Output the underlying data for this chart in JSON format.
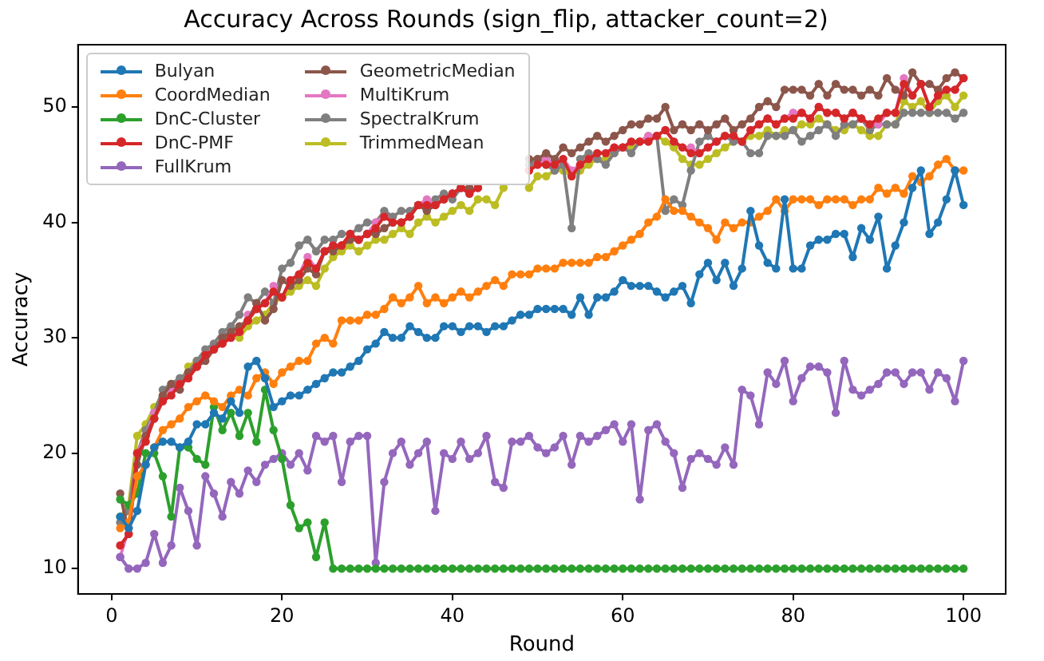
{
  "chart_data": {
    "type": "line",
    "title": "Accuracy Across Rounds (sign_flip, attacker_count=2)",
    "xlabel": "Round",
    "ylabel": "Accuracy",
    "x": [
      1,
      2,
      3,
      4,
      5,
      6,
      7,
      8,
      9,
      10,
      11,
      12,
      13,
      14,
      15,
      16,
      17,
      18,
      19,
      20,
      21,
      22,
      23,
      24,
      25,
      26,
      27,
      28,
      29,
      30,
      31,
      32,
      33,
      34,
      35,
      36,
      37,
      38,
      39,
      40,
      41,
      42,
      43,
      44,
      45,
      46,
      47,
      48,
      49,
      50,
      51,
      52,
      53,
      54,
      55,
      56,
      57,
      58,
      59,
      60,
      61,
      62,
      63,
      64,
      65,
      66,
      67,
      68,
      69,
      70,
      71,
      72,
      73,
      74,
      75,
      76,
      77,
      78,
      79,
      80,
      81,
      82,
      83,
      84,
      85,
      86,
      87,
      88,
      89,
      90,
      91,
      92,
      93,
      94,
      95,
      96,
      97,
      98,
      99,
      100
    ],
    "xlim": [
      -3.95,
      104.95
    ],
    "xticks": [
      0,
      20,
      40,
      60,
      80,
      100
    ],
    "ylim": [
      7.8,
      55.4
    ],
    "yticks": [
      10,
      20,
      30,
      40,
      50
    ],
    "grid": false,
    "legend": "top left",
    "marker": "circle",
    "line_style": "solid",
    "series": [
      {
        "name": "Bulyan",
        "color": "#1f77b4",
        "values": [
          14.5,
          13.5,
          15,
          19,
          20.5,
          21,
          21,
          20.5,
          21,
          22.5,
          22.5,
          23.5,
          23,
          24.5,
          23.5,
          27.5,
          28,
          26.5,
          24,
          24.5,
          25,
          25,
          25.5,
          26,
          26.5,
          27,
          27,
          27.5,
          28,
          29,
          29.5,
          30.5,
          30,
          30,
          31,
          30.5,
          30,
          30,
          31,
          31,
          30.5,
          31,
          31,
          30.5,
          31,
          31,
          31.5,
          32,
          32,
          32.5,
          32.5,
          32.5,
          32.5,
          32,
          33.5,
          32,
          33.5,
          33.5,
          34,
          35,
          34.5,
          34.5,
          34.5,
          34,
          33.5,
          34,
          34.5,
          33,
          35.5,
          36.5,
          35,
          36.5,
          34.5,
          36,
          41,
          38,
          36.5,
          36,
          42,
          36,
          36,
          38,
          38.5,
          38.5,
          39,
          39,
          37,
          39.5,
          38.5,
          40.5,
          36,
          38,
          40,
          43,
          44.5,
          39,
          40,
          42,
          44.5,
          41.5
        ]
      },
      {
        "name": "CoordMedian",
        "color": "#ff7f0e",
        "values": [
          13.5,
          14,
          18,
          19,
          20.5,
          22,
          22.5,
          23,
          24,
          24.5,
          25,
          24.5,
          24,
          25,
          25.5,
          25,
          26.5,
          27,
          26,
          27,
          27.5,
          28,
          28,
          29.5,
          30,
          29.5,
          31.5,
          31.5,
          31.5,
          32,
          32,
          32.5,
          33.5,
          33,
          33.5,
          34.5,
          33,
          33.5,
          33,
          33.5,
          34,
          33.5,
          34,
          34.5,
          35,
          34.5,
          35.5,
          35.5,
          35.5,
          36,
          36,
          36,
          36.5,
          36.5,
          36.5,
          36.5,
          37,
          37,
          37.5,
          38,
          38.5,
          39,
          40,
          40.5,
          42,
          41,
          41,
          40.5,
          40,
          39.5,
          38.5,
          40,
          39.5,
          40,
          40,
          40.5,
          41,
          42,
          41,
          42,
          42,
          42,
          41.5,
          42,
          42,
          42,
          41.5,
          42,
          42,
          43,
          42.5,
          43,
          42.5,
          44,
          43.5,
          44,
          45,
          45.5,
          44.5,
          44.5
        ]
      },
      {
        "name": "DnC-Cluster",
        "color": "#2ca02c",
        "values": [
          16,
          15.5,
          16.5,
          20,
          20,
          18,
          14.5,
          20.5,
          20.5,
          19.5,
          19,
          24,
          22,
          23.5,
          21.5,
          23.5,
          21,
          25.5,
          22,
          19.5,
          15.5,
          13.5,
          14,
          11,
          14,
          10,
          10,
          10,
          10,
          10,
          10,
          10,
          10,
          10,
          10,
          10,
          10,
          10,
          10,
          10,
          10,
          10,
          10,
          10,
          10,
          10,
          10,
          10,
          10,
          10,
          10,
          10,
          10,
          10,
          10,
          10,
          10,
          10,
          10,
          10,
          10,
          10,
          10,
          10,
          10,
          10,
          10,
          10,
          10,
          10,
          10,
          10,
          10,
          10,
          10,
          10,
          10,
          10,
          10,
          10,
          10,
          10,
          10,
          10,
          10,
          10,
          10,
          10,
          10,
          10,
          10,
          10,
          10,
          10,
          10,
          10,
          10,
          10,
          10,
          10
        ]
      },
      {
        "name": "DnC-PMF",
        "color": "#d62728",
        "values": [
          12,
          13,
          20,
          21,
          23,
          24.5,
          25,
          26,
          26.5,
          27.5,
          28.5,
          29,
          29.5,
          30,
          30.5,
          31.5,
          32.5,
          33,
          34,
          33.5,
          35,
          35.5,
          36.5,
          36,
          37.5,
          38,
          38,
          39,
          38.5,
          39,
          39.5,
          40.5,
          40,
          40,
          40.5,
          41.5,
          41.5,
          41.5,
          42,
          42.5,
          43,
          42.5,
          43,
          null,
          null,
          null,
          null,
          null,
          44.5,
          45,
          45,
          45,
          45.5,
          44,
          45,
          45.5,
          46,
          46,
          46.5,
          46.5,
          47,
          47,
          47,
          47.5,
          48,
          47,
          46.5,
          46,
          46,
          46.5,
          47,
          47.5,
          47.5,
          47,
          48,
          48.5,
          49,
          48.5,
          49,
          49,
          49.5,
          49,
          50,
          49.5,
          49.5,
          49,
          49.5,
          49,
          48.5,
          49,
          49.5,
          49.5,
          52,
          51,
          52,
          50,
          51,
          51.5,
          51.5,
          52.5
        ]
      },
      {
        "name": "FullKrum",
        "color": "#9467bd",
        "values": [
          11,
          10,
          10,
          10.5,
          13,
          10.5,
          12,
          17,
          15,
          12,
          18,
          16.5,
          14.5,
          17.5,
          16.5,
          18.5,
          17.5,
          19,
          19.5,
          20,
          19,
          20,
          18.5,
          21.5,
          21,
          21.5,
          17.5,
          21,
          21.5,
          21.5,
          10.5,
          17.5,
          20,
          21,
          19,
          20,
          21,
          15,
          20,
          19.5,
          21,
          19.5,
          20,
          21.5,
          17.5,
          17,
          21,
          21,
          21.5,
          20.5,
          20,
          20.5,
          21.5,
          19,
          21.5,
          21,
          21.5,
          22,
          22.5,
          21,
          22.5,
          16,
          22,
          22.5,
          21,
          20,
          17,
          19.5,
          20,
          19.5,
          19,
          20.5,
          19,
          25.5,
          25,
          22.5,
          27,
          26,
          28,
          24.5,
          26.5,
          27.5,
          27.5,
          27,
          23.5,
          28,
          25.5,
          25,
          25.5,
          26,
          27,
          27,
          26,
          27,
          27,
          25.5,
          27,
          26.5,
          24.5,
          28
        ]
      },
      {
        "name": "GeometricMedian",
        "color": "#8c564b",
        "values": [
          16.5,
          13,
          19,
          21.5,
          23,
          25,
          26,
          25.5,
          27,
          27.5,
          28,
          29,
          30,
          30.5,
          31,
          31.5,
          33,
          31.5,
          32.5,
          35,
          34.5,
          35,
          36,
          35.5,
          37.5,
          37.5,
          38,
          38.5,
          38.5,
          39,
          39,
          39.5,
          40,
          40,
          40.5,
          41.5,
          41,
          41.5,
          42,
          42.5,
          43,
          43,
          null,
          null,
          null,
          null,
          null,
          null,
          45.5,
          45.5,
          46,
          45.5,
          46.5,
          46,
          46.5,
          47,
          47.5,
          47,
          47.5,
          48,
          48.5,
          48.5,
          49,
          49,
          50,
          48,
          48.5,
          48,
          48.5,
          48,
          48.5,
          49,
          48,
          48.5,
          49,
          50,
          50.5,
          50,
          51.5,
          51.5,
          51.5,
          51,
          52,
          51,
          52,
          51.5,
          51.5,
          51,
          51.5,
          51,
          52.5,
          51.5,
          51,
          53,
          52,
          52,
          51.5,
          52.5,
          53,
          52.5
        ]
      },
      {
        "name": "MultiKrum",
        "color": "#e377c2",
        "values": [
          11,
          13.5,
          20,
          21.5,
          23.5,
          24.5,
          25.5,
          26,
          26.5,
          27.5,
          28.5,
          29,
          29.5,
          30,
          30.5,
          32,
          32.5,
          33,
          34.5,
          33.5,
          35,
          35.5,
          37,
          36,
          37.5,
          38,
          38,
          39,
          38.5,
          39,
          40,
          40.5,
          40,
          40,
          40.5,
          41.5,
          42,
          41.5,
          42,
          42.5,
          43,
          42.5,
          43,
          null,
          null,
          null,
          null,
          null,
          44.5,
          45,
          45.5,
          45,
          45.5,
          44.5,
          45,
          45.5,
          46,
          46,
          46.5,
          46.5,
          47,
          47,
          47.5,
          47.5,
          48,
          47,
          46.5,
          46.5,
          46,
          46.5,
          47,
          47.5,
          47.5,
          47,
          48,
          48.5,
          49,
          48.5,
          49,
          49.5,
          49.5,
          49,
          50,
          49.5,
          49.5,
          49,
          49.5,
          49,
          48.5,
          48.5,
          49.5,
          49.5,
          52.5,
          51,
          52,
          50,
          51,
          51.5,
          51.5,
          52.5
        ]
      },
      {
        "name": "SpectralKrum",
        "color": "#7f7f7f",
        "values": [
          14,
          15,
          20,
          22,
          23.5,
          25.5,
          26,
          26.5,
          27,
          28,
          29,
          29.5,
          30.5,
          31,
          32,
          33.5,
          33,
          34,
          33,
          36,
          36.5,
          38,
          38.5,
          37.5,
          38.5,
          38.5,
          39,
          39,
          39.5,
          40,
          40,
          41,
          40.5,
          41,
          41,
          41.5,
          41.5,
          42,
          42.5,
          42,
          43,
          42.5,
          43,
          null,
          null,
          null,
          null,
          null,
          45,
          45.5,
          45,
          44.5,
          45,
          39.5,
          45.5,
          46,
          45.5,
          45,
          46,
          46.5,
          46,
          47,
          47,
          47.5,
          41,
          42,
          41.5,
          44.5,
          47,
          47.5,
          47,
          47.5,
          47,
          47,
          46,
          46,
          47.5,
          47.5,
          47.5,
          48,
          47,
          47.5,
          48,
          48.5,
          47.5,
          48.5,
          48.5,
          49,
          48,
          48.5,
          48.5,
          48.5,
          49.5,
          49.5,
          49.5,
          49.5,
          49.5,
          49.5,
          49,
          49.5
        ]
      },
      {
        "name": "TrimmedMean",
        "color": "#bcbd22",
        "values": [
          14.5,
          15.5,
          21.5,
          22.5,
          24,
          25,
          25.5,
          26,
          27.5,
          28,
          28.5,
          29,
          29.5,
          30.5,
          30,
          31,
          31.5,
          32,
          33,
          33.5,
          34,
          34.5,
          35,
          34.5,
          36,
          37,
          37.5,
          38,
          37.5,
          38,
          38.5,
          38.5,
          39,
          39.5,
          39,
          40,
          40.5,
          40,
          40.5,
          41,
          41.5,
          41,
          42,
          42,
          41.5,
          43,
          null,
          null,
          43,
          44,
          44,
          44.5,
          44.5,
          44,
          44.5,
          45,
          45.5,
          45.5,
          46,
          46.5,
          46.5,
          47,
          47.5,
          47.5,
          47,
          46.5,
          45.5,
          45,
          45,
          45.5,
          46,
          46.5,
          47,
          47,
          47.5,
          47.5,
          48,
          47.5,
          48,
          48,
          48.5,
          48.5,
          49,
          48.5,
          48,
          48,
          48.5,
          48,
          47.5,
          47.5,
          48.5,
          48.5,
          50.5,
          50,
          50.5,
          49.5,
          50.5,
          51,
          50,
          51
        ]
      }
    ]
  }
}
